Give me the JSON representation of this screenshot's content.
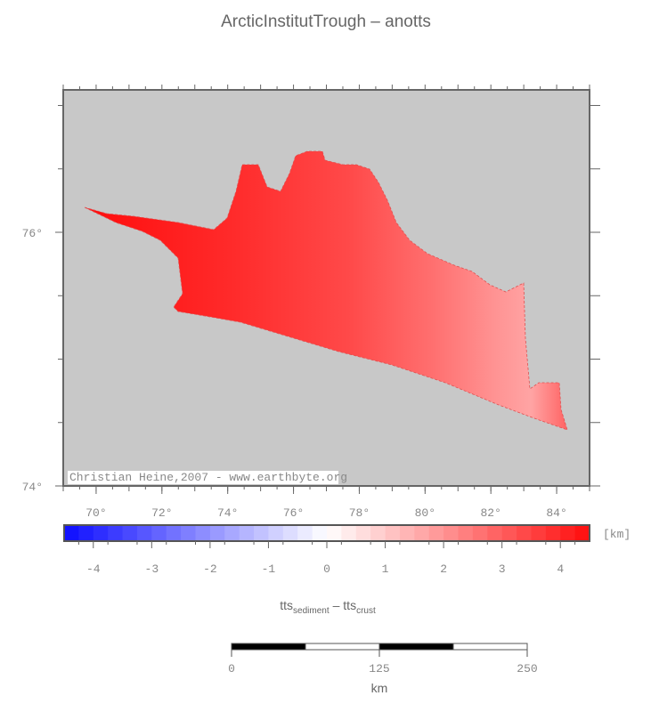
{
  "title": "ArcticInstitutTrough – anotts",
  "map": {
    "lon_ticks": [
      {
        "value": 70,
        "label": "70°"
      },
      {
        "value": 72,
        "label": "72°"
      },
      {
        "value": 74,
        "label": "74°"
      },
      {
        "value": 76,
        "label": "76°"
      },
      {
        "value": 78,
        "label": "78°"
      },
      {
        "value": 80,
        "label": "80°"
      },
      {
        "value": 82,
        "label": "82°"
      },
      {
        "value": 84,
        "label": "84°"
      }
    ],
    "lat_ticks": [
      {
        "value": 74,
        "label": "74°"
      },
      {
        "value": 76,
        "label": "76°"
      }
    ],
    "credit": "Christian Heine,2007 - www.earthbyte.org"
  },
  "colorbar": {
    "ticks": [
      -4,
      -3,
      -2,
      -1,
      0,
      1,
      2,
      3,
      4
    ],
    "unit": "[km]",
    "label": {
      "main1": "tts",
      "sub1": "sediment",
      "main2": "– tts",
      "sub2": "crust"
    }
  },
  "scale_bar": {
    "ticks": [
      0,
      125,
      250
    ],
    "unit": "km"
  }
}
